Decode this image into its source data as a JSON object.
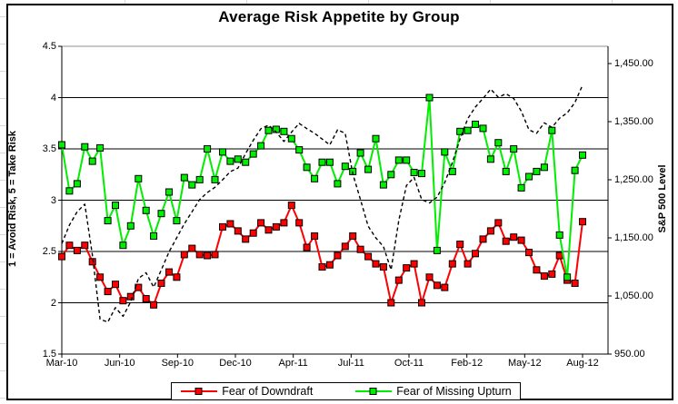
{
  "title": "Average Risk Appetite by Group",
  "chart_data": {
    "type": "line",
    "title": "Average Risk Appetite by Group",
    "grid": "horizontal",
    "legend_position": "bottom",
    "left_axis": {
      "label": "1 = Avoid Risk, 5 = Take Risk",
      "min": 1.5,
      "max": 4.5,
      "step": 0.5,
      "tick_labels": [
        "4.5",
        "4",
        "3.5",
        "3",
        "2.5",
        "2",
        "1.5"
      ]
    },
    "right_axis": {
      "label": "S&P 500 Level",
      "min": 950,
      "max": 1450,
      "step": 100,
      "tick_labels": [
        "1,450.00",
        "1,350.00",
        "1,250.00",
        "1,150.00",
        "1,050.00",
        "950.00"
      ]
    },
    "x_axis": {
      "tick_labels": [
        "Mar-10",
        "Jun-10",
        "Sep-10",
        "Dec-10",
        "Apr-11",
        "Jul-11",
        "Oct-11",
        "Feb-12",
        "May-12",
        "Aug-12"
      ]
    },
    "series": [
      {
        "name": "Fear of Downdraft",
        "color": "#ff0000",
        "axis": "left",
        "marker": "square",
        "style": "solid",
        "values": [
          2.45,
          2.56,
          2.51,
          2.56,
          2.4,
          2.25,
          2.11,
          2.18,
          2.02,
          2.06,
          2.15,
          2.04,
          1.98,
          2.19,
          2.3,
          2.25,
          2.47,
          2.53,
          2.47,
          2.46,
          2.47,
          2.74,
          2.77,
          2.7,
          2.62,
          2.68,
          2.78,
          2.71,
          2.74,
          2.78,
          2.95,
          2.78,
          2.54,
          2.65,
          2.35,
          2.37,
          2.46,
          2.55,
          2.65,
          2.52,
          2.45,
          2.38,
          2.35,
          2.0,
          2.22,
          2.34,
          2.38,
          2.0,
          2.25,
          2.17,
          2.15,
          2.38,
          2.57,
          2.38,
          2.48,
          2.62,
          2.7,
          2.78,
          2.6,
          2.64,
          2.61,
          2.49,
          2.32,
          2.26,
          2.28,
          2.46,
          2.22,
          2.19,
          2.79
        ]
      },
      {
        "name": "Fear of Missing Upturn",
        "color": "#00ee00",
        "axis": "left",
        "marker": "square",
        "style": "solid",
        "values": [
          3.54,
          3.09,
          3.16,
          3.52,
          3.38,
          3.51,
          2.8,
          2.95,
          2.56,
          2.75,
          3.21,
          2.9,
          2.65,
          2.87,
          3.08,
          2.8,
          3.22,
          3.15,
          3.2,
          3.5,
          3.2,
          3.47,
          3.38,
          3.4,
          3.37,
          3.45,
          3.53,
          3.68,
          3.69,
          3.67,
          3.6,
          3.49,
          3.32,
          3.21,
          3.37,
          3.37,
          3.16,
          3.33,
          3.28,
          3.46,
          3.3,
          3.6,
          3.15,
          3.25,
          3.39,
          3.39,
          3.27,
          3.26,
          4.0,
          2.51,
          3.47,
          3.28,
          3.67,
          3.68,
          3.74,
          3.7,
          3.4,
          3.56,
          3.28,
          3.5,
          3.12,
          3.23,
          3.28,
          3.32,
          3.68,
          2.66,
          2.25,
          3.29,
          3.44
        ]
      },
      {
        "name": "S&P 500",
        "color": "#000000",
        "axis": "right",
        "marker": "none",
        "style": "dashed",
        "in_legend": false,
        "values": [
          1140,
          1172,
          1195,
          1208,
          1120,
          1010,
          1005,
          1030,
          1015,
          1040,
          1080,
          1090,
          1065,
          1095,
          1126,
          1150,
          1174,
          1195,
          1216,
          1228,
          1237,
          1250,
          1264,
          1270,
          1295,
          1318,
          1338,
          1344,
          1332,
          1316,
          1332,
          1347,
          1338,
          1330,
          1320,
          1310,
          1336,
          1330,
          1260,
          1216,
          1170,
          1150,
          1135,
          1095,
          1180,
          1240,
          1254,
          1216,
          1210,
          1220,
          1245,
          1280,
          1320,
          1355,
          1375,
          1390,
          1406,
          1392,
          1398,
          1390,
          1368,
          1336,
          1330,
          1348,
          1340,
          1356,
          1365,
          1383,
          1413
        ]
      }
    ],
    "legend_entries": [
      "Fear of Downdraft",
      "Fear of Missing Upturn"
    ]
  }
}
